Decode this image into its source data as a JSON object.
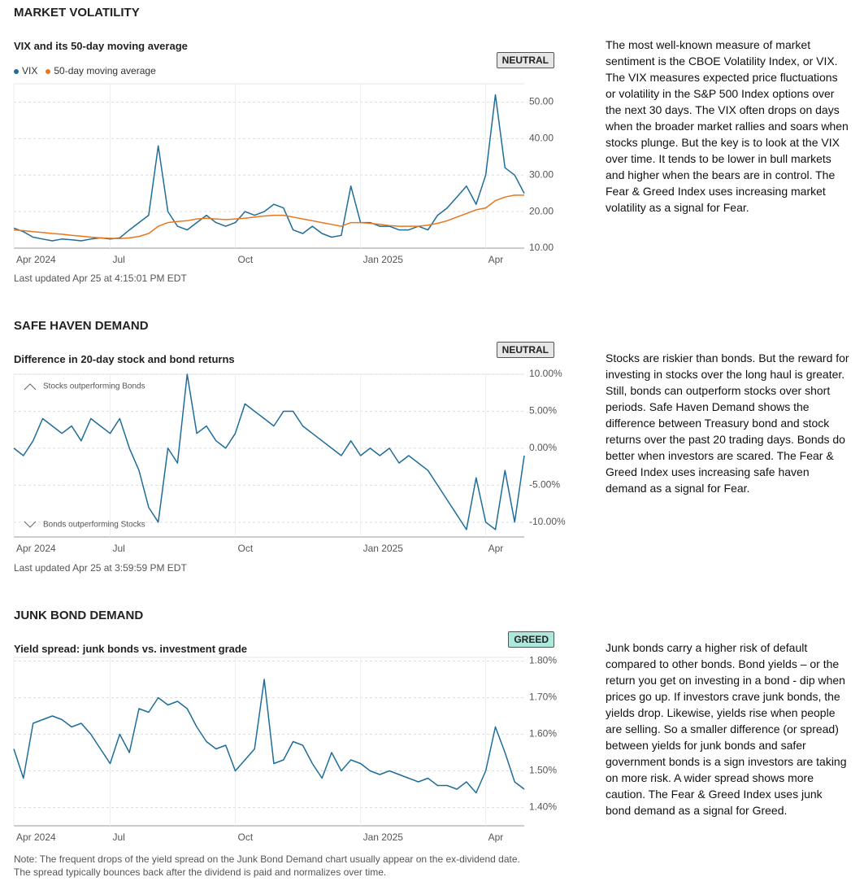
{
  "chart_data": [
    {
      "type": "line",
      "section": "MARKET VOLATILITY",
      "title": "VIX and its 50-day moving average",
      "badge": "NEUTRAL",
      "badge_color": "#e6e6e6",
      "categories": [
        "Apr 2024",
        null,
        null,
        null,
        null,
        null,
        null,
        null,
        null,
        null,
        "Jul",
        null,
        null,
        null,
        null,
        null,
        null,
        null,
        null,
        null,
        null,
        null,
        null,
        "Oct",
        null,
        null,
        null,
        null,
        null,
        null,
        null,
        null,
        null,
        null,
        null,
        null,
        "Jan 2025",
        null,
        null,
        null,
        null,
        null,
        null,
        null,
        null,
        null,
        null,
        null,
        null,
        "Apr",
        null,
        null,
        null,
        null
      ],
      "series": [
        {
          "name": "VIX",
          "color": "#1f6d99",
          "values": [
            15.5,
            14.5,
            13,
            12.5,
            12,
            12.5,
            12.3,
            12,
            12.5,
            12.8,
            12.5,
            12.8,
            15,
            17,
            19,
            38,
            20,
            16,
            15,
            17,
            19,
            17,
            16,
            17,
            20,
            19,
            20,
            22,
            21,
            15,
            14,
            16,
            14,
            13,
            13.5,
            27,
            17,
            17,
            16,
            16,
            15,
            15,
            16,
            15,
            19,
            21,
            24,
            27,
            22,
            30,
            52,
            32,
            30,
            25
          ]
        },
        {
          "name": "50-day moving average",
          "color": "#e8771c",
          "values": [
            15,
            14.8,
            14.5,
            14.3,
            14,
            13.8,
            13.5,
            13.3,
            13,
            12.8,
            12.7,
            12.6,
            12.8,
            13.2,
            14,
            16,
            17,
            17.3,
            17.5,
            18,
            18.2,
            18,
            17.8,
            18,
            18.2,
            18.5,
            18.8,
            19,
            19,
            18.5,
            18,
            17.5,
            17,
            16.5,
            16,
            17,
            17,
            16.8,
            16.5,
            16.2,
            16,
            16,
            16,
            16.3,
            16.8,
            17.5,
            18.5,
            19.5,
            20.5,
            21,
            23,
            24,
            24.5,
            24.5
          ]
        }
      ],
      "ylim": [
        10,
        55
      ],
      "yticks": [
        {
          "value": 10,
          "label": "10.00"
        },
        {
          "value": 20,
          "label": "20.00"
        },
        {
          "value": 30,
          "label": "30.00"
        },
        {
          "value": 40,
          "label": "40.00"
        },
        {
          "value": 50,
          "label": "50.00"
        }
      ],
      "grid": true,
      "legend": "top-left",
      "updated": "Last updated Apr 25 at 4:15:01 PM EDT",
      "description": "The most well-known measure of market sentiment is the CBOE Volatility Index, or VIX. The VIX measures expected price fluctuations or volatility in the S&P 500 Index options over the next 30 days. The VIX often drops on days when the broader market rallies and soars when stocks plunge. But the key is to look at the VIX over time. It tends to be lower in bull markets and higher when the bears are in control. The Fear & Greed Index uses increasing market volatility as a signal for Fear."
    },
    {
      "type": "line",
      "section": "SAFE HAVEN DEMAND",
      "title": "Difference in 20-day stock and bond returns",
      "badge": "NEUTRAL",
      "badge_color": "#e6e6e6",
      "categories": [
        "Apr 2024",
        null,
        null,
        null,
        null,
        null,
        null,
        null,
        null,
        null,
        "Jul",
        null,
        null,
        null,
        null,
        null,
        null,
        null,
        null,
        null,
        null,
        null,
        null,
        "Oct",
        null,
        null,
        null,
        null,
        null,
        null,
        null,
        null,
        null,
        null,
        null,
        null,
        "Jan 2025",
        null,
        null,
        null,
        null,
        null,
        null,
        null,
        null,
        null,
        null,
        null,
        null,
        "Apr",
        null,
        null,
        null,
        null
      ],
      "values": [
        0,
        -1,
        1,
        4,
        3,
        2,
        3,
        1,
        4,
        3,
        2,
        4,
        0,
        -3,
        -8,
        -10,
        0,
        -2,
        10,
        2,
        3,
        1,
        0,
        2,
        6,
        5,
        4,
        3,
        5,
        5,
        3,
        2,
        1,
        0,
        -1,
        1,
        -1,
        0,
        -1,
        0,
        -2,
        -1,
        -2,
        -3,
        -5,
        -7,
        -9,
        -11,
        -4,
        -10,
        -11,
        -3,
        -10,
        -1
      ],
      "color": "#1f6d99",
      "ylim": [
        -12,
        10
      ],
      "yticks": [
        {
          "value": 10,
          "label": "10.00%"
        },
        {
          "value": 5,
          "label": "5.00%"
        },
        {
          "value": 0,
          "label": "0.00%"
        },
        {
          "value": -5,
          "label": "-5.00%"
        },
        {
          "value": -10,
          "label": "-10.00%"
        }
      ],
      "grid": true,
      "annotations": [
        "Stocks outperforming Bonds",
        "Bonds outperforming Stocks"
      ],
      "updated": "Last updated Apr 25 at 3:59:59 PM EDT",
      "description": "Stocks are riskier than bonds. But the reward for investing in stocks over the long haul is greater. Still, bonds can outperform stocks over short periods. Safe Haven Demand shows the difference between Treasury bond and stock returns over the past 20 trading days. Bonds do better when investors are scared. The Fear & Greed Index uses increasing safe haven demand as a signal for Fear."
    },
    {
      "type": "line",
      "section": "JUNK BOND DEMAND",
      "title": "Yield spread: junk bonds vs. investment grade",
      "badge": "GREED",
      "badge_color": "#aee8dc",
      "categories": [
        "Apr 2024",
        null,
        null,
        null,
        null,
        null,
        null,
        null,
        null,
        null,
        "Jul",
        null,
        null,
        null,
        null,
        null,
        null,
        null,
        null,
        null,
        null,
        null,
        null,
        "Oct",
        null,
        null,
        null,
        null,
        null,
        null,
        null,
        null,
        null,
        null,
        null,
        null,
        "Jan 2025",
        null,
        null,
        null,
        null,
        null,
        null,
        null,
        null,
        null,
        null,
        null,
        null,
        "Apr",
        null,
        null,
        null,
        null
      ],
      "values": [
        1.56,
        1.48,
        1.63,
        1.64,
        1.65,
        1.64,
        1.62,
        1.63,
        1.6,
        1.56,
        1.52,
        1.6,
        1.55,
        1.67,
        1.66,
        1.7,
        1.68,
        1.69,
        1.67,
        1.62,
        1.58,
        1.56,
        1.57,
        1.5,
        1.53,
        1.56,
        1.75,
        1.52,
        1.53,
        1.58,
        1.57,
        1.52,
        1.48,
        1.55,
        1.5,
        1.53,
        1.52,
        1.5,
        1.49,
        1.5,
        1.49,
        1.48,
        1.47,
        1.48,
        1.46,
        1.46,
        1.45,
        1.47,
        1.44,
        1.5,
        1.62,
        1.55,
        1.47,
        1.45
      ],
      "color": "#1f6d99",
      "ylim": [
        1.35,
        1.81
      ],
      "yticks": [
        {
          "value": 1.4,
          "label": "1.40%"
        },
        {
          "value": 1.5,
          "label": "1.50%"
        },
        {
          "value": 1.6,
          "label": "1.60%"
        },
        {
          "value": 1.7,
          "label": "1.70%"
        },
        {
          "value": 1.8,
          "label": "1.80%"
        }
      ],
      "grid": true,
      "note": [
        "Note: The frequent drops of the yield spread on the Junk Bond Demand chart usually appear on the ex-dividend date.",
        "The spread typically bounces back after the dividend is paid and normalizes over time."
      ],
      "description": "Junk bonds carry a higher risk of default compared to other bonds. Bond yields – or the return you get on investing in a bond - dip when prices go up. If investors crave junk bonds, the yields drop. Likewise, yields rise when people are selling. So a smaller difference (or spread) between yields for junk bonds and safer government bonds is a sign investors are taking on more risk. A wider spread shows more caution. The Fear & Greed Index uses junk bond demand as a signal for Greed."
    }
  ]
}
